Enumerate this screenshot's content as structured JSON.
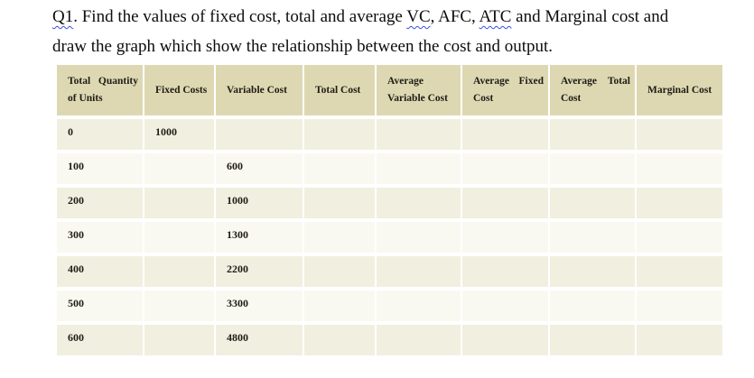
{
  "title": {
    "parts": [
      {
        "text": "Q1",
        "squiggle": true
      },
      {
        "text": ". Find the values of fixed cost, total and average ",
        "squiggle": false
      },
      {
        "text": "VC",
        "squiggle": true
      },
      {
        "text": ", AFC, ",
        "squiggle": false
      },
      {
        "text": "ATC",
        "squiggle": true
      },
      {
        "text": " and Marginal cost and",
        "squiggle": false
      },
      {
        "break": true
      },
      {
        "text": "draw the graph which show the relationship between the cost and output.",
        "squiggle": false
      }
    ],
    "squiggle_color": "#3b4ee0"
  },
  "table": {
    "header_bg": "#ddd8b2",
    "row_bg_a": "#f1f0e0",
    "row_bg_b": "#faf9f1",
    "text_color": "#1e1c15",
    "columns": [
      {
        "id": "total-quantity-of-units",
        "lines": [
          "Total Quantity",
          "of Units"
        ]
      },
      {
        "id": "fixed-costs",
        "lines": [
          "Fixed Costs"
        ]
      },
      {
        "id": "variable-cost",
        "lines": [
          "Variable Cost"
        ]
      },
      {
        "id": "total-cost",
        "lines": [
          "Total Cost"
        ]
      },
      {
        "id": "average-variable-cost",
        "lines": [
          "Average",
          "Variable Cost"
        ]
      },
      {
        "id": "average-fixed-cost",
        "lines": [
          "Average Fixed",
          "Cost"
        ]
      },
      {
        "id": "average-total-cost",
        "lines": [
          "Average Total",
          "Cost"
        ]
      },
      {
        "id": "marginal-cost",
        "lines": [
          "Marginal Cost"
        ]
      }
    ],
    "rows": [
      [
        "0",
        "1000",
        "",
        "",
        "",
        "",
        "",
        ""
      ],
      [
        "100",
        "",
        "600",
        "",
        "",
        "",
        "",
        ""
      ],
      [
        "200",
        "",
        "1000",
        "",
        "",
        "",
        "",
        ""
      ],
      [
        "300",
        "",
        "1300",
        "",
        "",
        "",
        "",
        ""
      ],
      [
        "400",
        "",
        "2200",
        "",
        "",
        "",
        "",
        ""
      ],
      [
        "500",
        "",
        "3300",
        "",
        "",
        "",
        "",
        ""
      ],
      [
        "600",
        "",
        "4800",
        "",
        "",
        "",
        "",
        ""
      ]
    ]
  }
}
